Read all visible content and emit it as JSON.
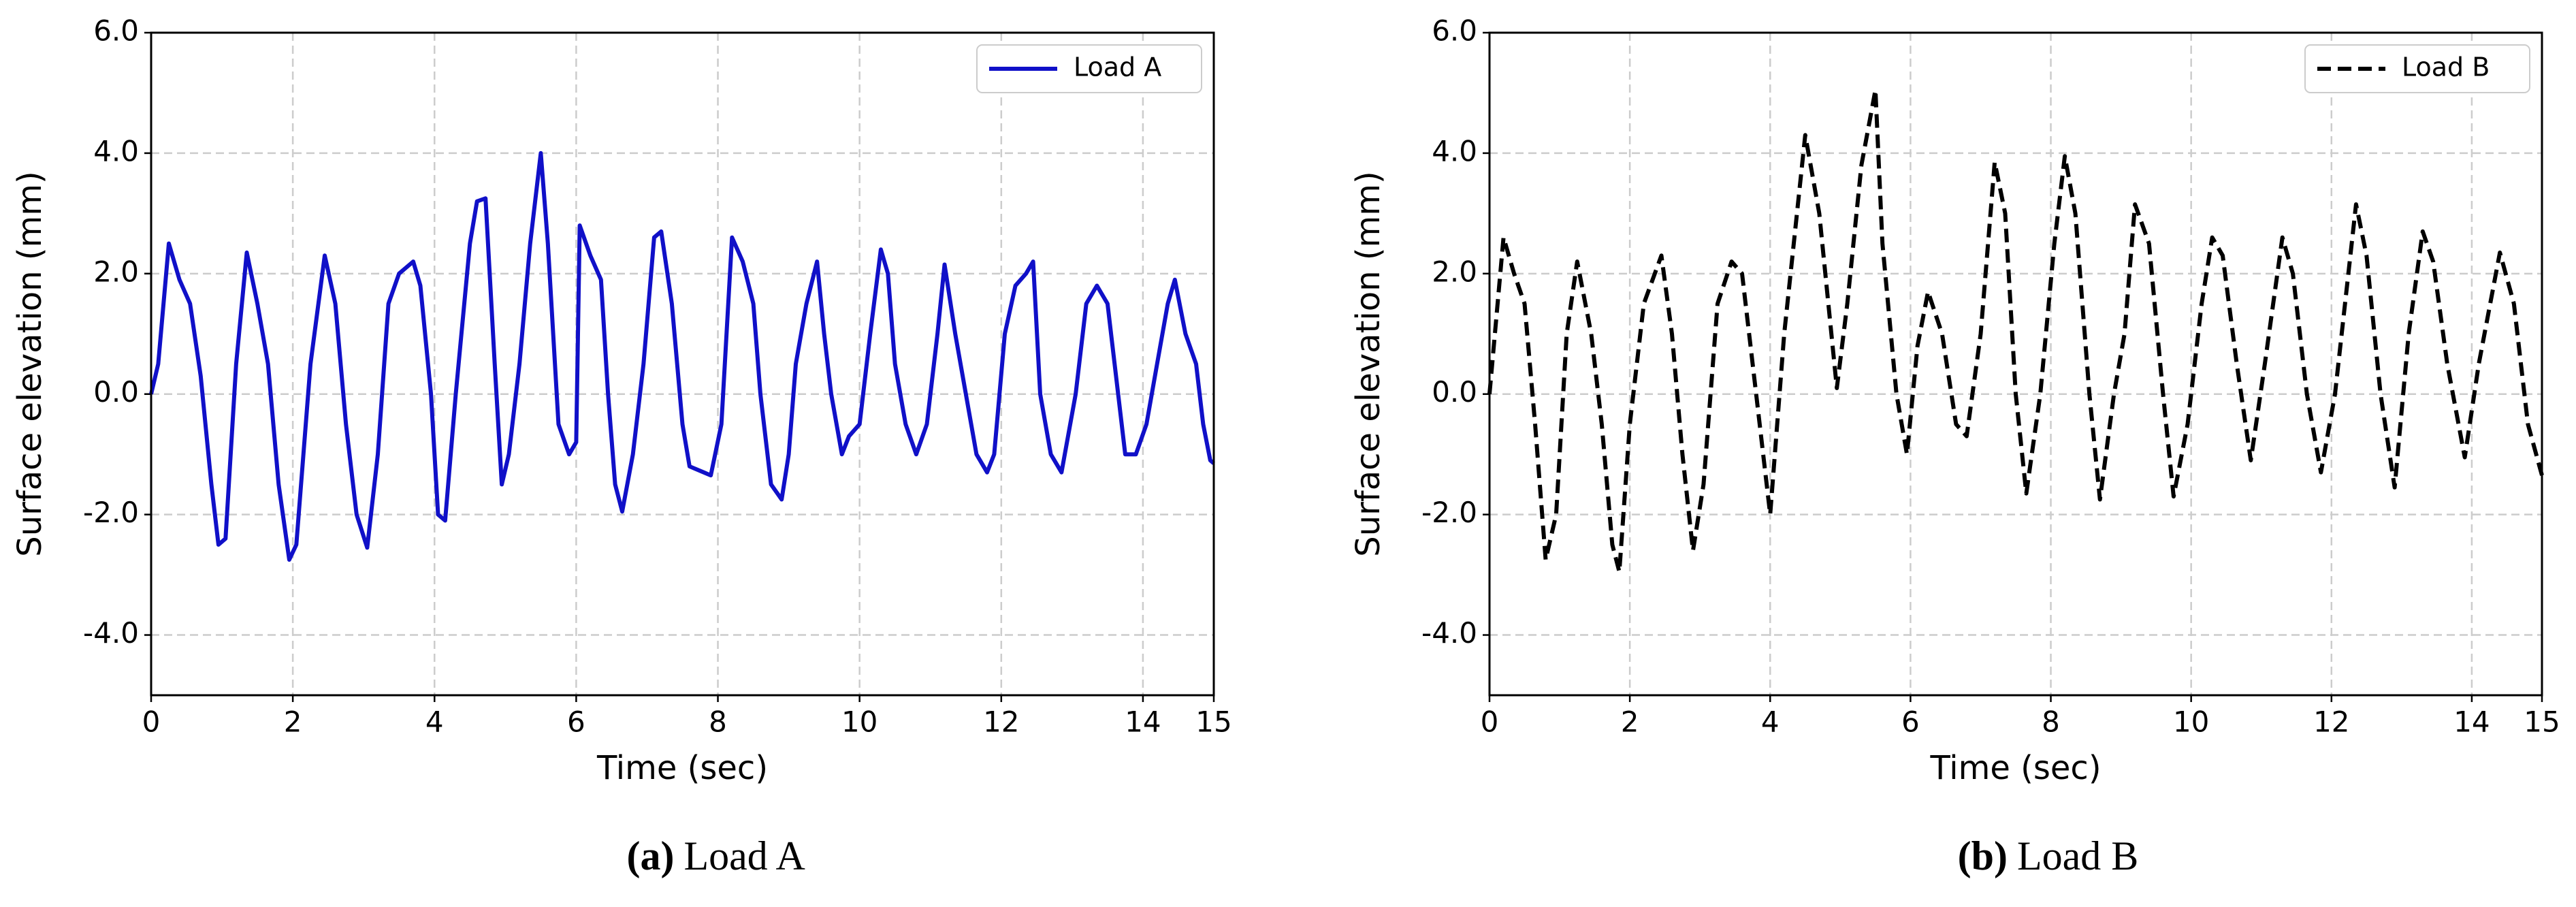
{
  "chart_data": [
    {
      "type": "line",
      "caption_tag": "(a)",
      "caption": "Load A",
      "xlabel": "Time (sec)",
      "ylabel": "Surface elevation (mm)",
      "xlim": [
        0,
        15
      ],
      "ylim": [
        -5,
        6
      ],
      "xticks": [
        0,
        2,
        4,
        6,
        8,
        10,
        12,
        14,
        15
      ],
      "yticks": [
        {
          "value": -4,
          "label": "-4.0"
        },
        {
          "value": -2,
          "label": "-2.0"
        },
        {
          "value": 0,
          "label": "0.0"
        },
        {
          "value": 2,
          "label": "2.0"
        },
        {
          "value": 4,
          "label": "4.0"
        },
        {
          "value": 6,
          "label": "6.0"
        }
      ],
      "grid": true,
      "legend": "upper right",
      "line_style": "solid",
      "x": [
        0,
        0.1,
        0.25,
        0.4,
        0.55,
        0.7,
        0.85,
        0.95,
        1.05,
        1.2,
        1.35,
        1.5,
        1.65,
        1.8,
        1.95,
        2.05,
        2.25,
        2.45,
        2.6,
        2.75,
        2.9,
        3.05,
        3.2,
        3.35,
        3.5,
        3.7,
        3.8,
        3.95,
        4.05,
        4.15,
        4.3,
        4.5,
        4.6,
        4.72,
        4.85,
        4.95,
        5.05,
        5.2,
        5.35,
        5.5,
        5.6,
        5.75,
        5.9,
        6.0,
        6.05,
        6.2,
        6.35,
        6.45,
        6.55,
        6.65,
        6.8,
        6.95,
        7.1,
        7.2,
        7.35,
        7.5,
        7.6,
        7.8,
        7.9,
        8.05,
        8.2,
        8.35,
        8.5,
        8.6,
        8.75,
        8.9,
        9.0,
        9.1,
        9.25,
        9.4,
        9.5,
        9.6,
        9.75,
        9.85,
        10.0,
        10.15,
        10.3,
        10.4,
        10.5,
        10.65,
        10.8,
        10.95,
        11.1,
        11.2,
        11.35,
        11.5,
        11.65,
        11.8,
        11.9,
        12.05,
        12.2,
        12.35,
        12.45,
        12.55,
        12.7,
        12.85,
        13.05,
        13.2,
        13.35,
        13.5,
        13.6,
        13.75,
        13.9,
        14.05,
        14.2,
        14.35,
        14.45,
        14.6,
        14.75,
        14.85,
        14.95,
        15.0
      ],
      "series": [
        {
          "name": "Load A",
          "color": "#1010c8",
          "values": [
            0.0,
            0.5,
            2.5,
            1.9,
            1.5,
            0.3,
            -1.5,
            -2.5,
            -2.4,
            0.5,
            2.35,
            1.5,
            0.5,
            -1.5,
            -2.75,
            -2.5,
            0.5,
            2.3,
            1.5,
            -0.5,
            -2.0,
            -2.55,
            -1.0,
            1.5,
            2.0,
            2.2,
            1.8,
            0.0,
            -2.0,
            -2.1,
            0.0,
            2.5,
            3.2,
            3.25,
            0.5,
            -1.5,
            -1.0,
            0.5,
            2.5,
            4.0,
            2.5,
            -0.5,
            -1.0,
            -0.8,
            2.8,
            2.3,
            1.9,
            0.0,
            -1.5,
            -1.95,
            -1.0,
            0.5,
            2.6,
            2.7,
            1.5,
            -0.5,
            -1.2,
            -1.3,
            -1.35,
            -0.5,
            2.6,
            2.2,
            1.5,
            0.0,
            -1.5,
            -1.75,
            -1.0,
            0.5,
            1.5,
            2.2,
            1.0,
            0.0,
            -1.0,
            -0.7,
            -0.5,
            1.0,
            2.4,
            2.0,
            0.5,
            -0.5,
            -1.0,
            -0.5,
            1.0,
            2.15,
            1.0,
            0.0,
            -1.0,
            -1.3,
            -1.0,
            1.0,
            1.8,
            2.0,
            2.2,
            0.0,
            -1.0,
            -1.3,
            0.0,
            1.5,
            1.8,
            1.5,
            0.5,
            -1.0,
            -1.0,
            -0.5,
            0.5,
            1.5,
            1.9,
            1.0,
            0.5,
            -0.5,
            -1.1,
            -1.15
          ]
        }
      ]
    },
    {
      "type": "line",
      "caption_tag": "(b)",
      "caption": "Load B",
      "xlabel": "Time (sec)",
      "ylabel": "Surface elevation (mm)",
      "xlim": [
        0,
        15
      ],
      "ylim": [
        -5,
        6
      ],
      "xticks": [
        0,
        2,
        4,
        6,
        8,
        10,
        12,
        14,
        15
      ],
      "yticks": [
        {
          "value": -4,
          "label": "-4.0"
        },
        {
          "value": -2,
          "label": "-2.0"
        },
        {
          "value": 0,
          "label": "0.0"
        },
        {
          "value": 2,
          "label": "2.0"
        },
        {
          "value": 4,
          "label": "4.0"
        },
        {
          "value": 6,
          "label": "6.0"
        }
      ],
      "grid": true,
      "legend": "upper right",
      "line_style": "dashed",
      "x": [
        0,
        0.2,
        0.35,
        0.5,
        0.65,
        0.8,
        0.95,
        1.1,
        1.25,
        1.45,
        1.6,
        1.75,
        1.85,
        2.0,
        2.2,
        2.45,
        2.6,
        2.75,
        2.9,
        3.05,
        3.25,
        3.45,
        3.6,
        3.8,
        4.0,
        4.2,
        4.5,
        4.7,
        4.95,
        5.1,
        5.3,
        5.5,
        5.6,
        5.8,
        5.95,
        6.1,
        6.25,
        6.45,
        6.65,
        6.8,
        7.0,
        7.2,
        7.35,
        7.5,
        7.65,
        7.85,
        8.05,
        8.2,
        8.35,
        8.55,
        8.7,
        8.9,
        9.05,
        9.2,
        9.4,
        9.6,
        9.75,
        9.95,
        10.15,
        10.3,
        10.45,
        10.65,
        10.85,
        11.05,
        11.3,
        11.45,
        11.65,
        11.85,
        12.05,
        12.35,
        12.5,
        12.7,
        12.9,
        13.1,
        13.3,
        13.45,
        13.65,
        13.9,
        14.1,
        14.4,
        14.6,
        14.8,
        15.0
      ],
      "series": [
        {
          "name": "Load B",
          "color": "#000000",
          "values": [
            0.0,
            2.6,
            2.0,
            1.5,
            -0.5,
            -2.75,
            -2.0,
            1.0,
            2.2,
            1.0,
            -0.5,
            -2.5,
            -2.95,
            -0.5,
            1.5,
            2.3,
            1.0,
            -1.0,
            -2.6,
            -1.5,
            1.5,
            2.2,
            2.0,
            0.0,
            -2.0,
            1.0,
            4.3,
            3.0,
            0.1,
            1.5,
            3.8,
            5.05,
            2.5,
            0.0,
            -1.0,
            0.8,
            1.7,
            1.0,
            -0.5,
            -0.7,
            1.0,
            3.85,
            3.0,
            0.0,
            -1.65,
            0.0,
            2.5,
            3.95,
            3.0,
            0.0,
            -1.75,
            0.0,
            1.0,
            3.15,
            2.5,
            0.0,
            -1.7,
            -0.5,
            1.5,
            2.6,
            2.3,
            0.5,
            -1.1,
            0.5,
            2.6,
            2.0,
            0.0,
            -1.3,
            0.0,
            3.15,
            2.3,
            0.0,
            -1.55,
            1.0,
            2.7,
            2.2,
            0.5,
            -1.05,
            0.5,
            2.35,
            1.5,
            -0.5,
            -1.35
          ]
        }
      ]
    }
  ]
}
